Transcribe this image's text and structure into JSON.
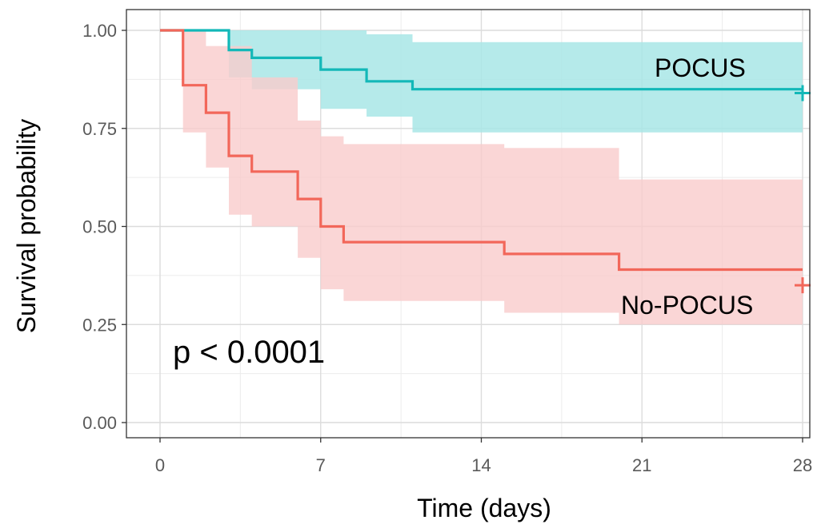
{
  "chart_data": {
    "type": "line",
    "subtype": "kaplan-meier survival curve",
    "xlabel": "Time (days)",
    "ylabel": "Survival probability",
    "xlim": [
      0,
      28
    ],
    "ylim": [
      0,
      1
    ],
    "xticks": [
      0,
      7,
      14,
      21,
      28
    ],
    "xtick_labels": [
      "0",
      "7",
      "14",
      "21",
      "28"
    ],
    "yticks": [
      0,
      0.25,
      0.5,
      0.75,
      1
    ],
    "ytick_labels": [
      "0.00",
      "0.25",
      "0.50",
      "0.75",
      "1.00"
    ],
    "grid": true,
    "legend": "none (series labelled directly on plot)",
    "annotation": "p < 0.0001",
    "series": [
      {
        "name": "POCUS",
        "color": "#13b8b8",
        "band_color": "#a8e6e6",
        "steps": [
          [
            0,
            1.0
          ],
          [
            3,
            0.95
          ],
          [
            4,
            0.93
          ],
          [
            7,
            0.9
          ],
          [
            9,
            0.87
          ],
          [
            11,
            0.85
          ],
          [
            28,
            0.85
          ]
        ],
        "ci_lower": [
          [
            0,
            1.0
          ],
          [
            3,
            0.88
          ],
          [
            4,
            0.85
          ],
          [
            7,
            0.8
          ],
          [
            9,
            0.78
          ],
          [
            11,
            0.74
          ],
          [
            28,
            0.74
          ]
        ],
        "ci_upper": [
          [
            0,
            1.0
          ],
          [
            9,
            0.99
          ],
          [
            11,
            0.97
          ],
          [
            28,
            0.97
          ]
        ],
        "censor": [
          [
            28,
            0.84
          ]
        ]
      },
      {
        "name": "No-POCUS",
        "color": "#f2675a",
        "band_color": "#f9cccc",
        "steps": [
          [
            0,
            1.0
          ],
          [
            1,
            0.86
          ],
          [
            2,
            0.79
          ],
          [
            3,
            0.68
          ],
          [
            4,
            0.64
          ],
          [
            6,
            0.57
          ],
          [
            7,
            0.5
          ],
          [
            8,
            0.46
          ],
          [
            15,
            0.43
          ],
          [
            20,
            0.39
          ],
          [
            28,
            0.39
          ]
        ],
        "ci_lower": [
          [
            0,
            1.0
          ],
          [
            1,
            0.74
          ],
          [
            2,
            0.65
          ],
          [
            3,
            0.53
          ],
          [
            4,
            0.5
          ],
          [
            6,
            0.42
          ],
          [
            7,
            0.34
          ],
          [
            8,
            0.31
          ],
          [
            15,
            0.28
          ],
          [
            20,
            0.25
          ],
          [
            28,
            0.25
          ]
        ],
        "ci_upper": [
          [
            0,
            1.0
          ],
          [
            2,
            0.96
          ],
          [
            4,
            0.88
          ],
          [
            6,
            0.77
          ],
          [
            7,
            0.73
          ],
          [
            8,
            0.71
          ],
          [
            15,
            0.7
          ],
          [
            20,
            0.62
          ],
          [
            28,
            0.62
          ]
        ],
        "censor": [
          [
            28,
            0.35
          ]
        ]
      }
    ]
  }
}
